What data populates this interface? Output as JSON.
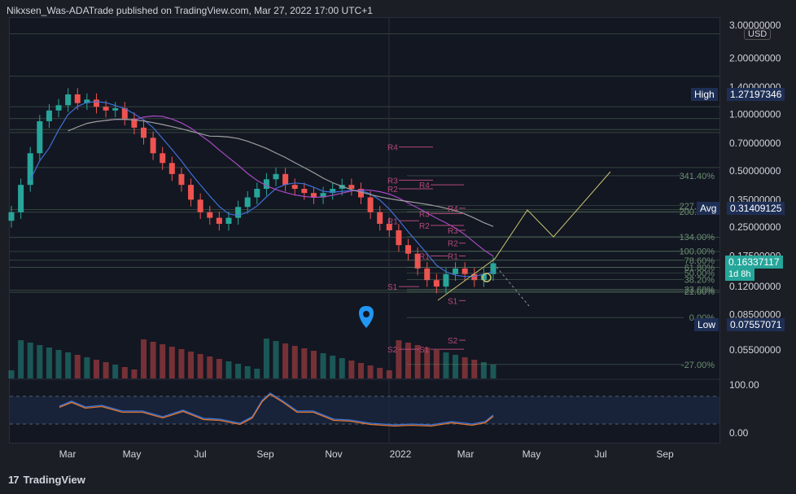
{
  "header": {
    "text": "Nikxsen_Was-ADATrade published on TradingView.com, Mar 27, 2022 17:00 UTC+1"
  },
  "footer": {
    "brand": "TradingView",
    "logo": "17"
  },
  "currency": "USD",
  "price_tags": {
    "high_label": "High",
    "high_value": "1.27197346",
    "avg_label": "Avg",
    "avg_value": "0.31409125",
    "low_label": "Low",
    "low_value": "0.07557071",
    "last_value": "0.16337117",
    "last_countdown": "1d 8h"
  },
  "colors": {
    "bull": "#26a69a",
    "bear": "#ef5350",
    "pivot": "#b4497a",
    "fib": "#6b8f71",
    "ma_blue": "#3f6fd6",
    "ma_purple": "#a54ac2",
    "ma_grey": "#9e9e9e",
    "projection": "#c9c473",
    "rsi_blue": "#3b73d8",
    "rsi_orange": "#e5772e",
    "marker": "#2196f3"
  },
  "chart_data": {
    "type": "candlestick",
    "symbol": "ADA/USD",
    "scale": "log",
    "ylim": [
      0.04,
      3.0
    ],
    "y_ticks": [
      "3.00000000",
      "2.00000000",
      "1.40000000",
      "1.00000000",
      "0.70000000",
      "0.50000000",
      "0.35000000",
      "0.25000000",
      "0.17500000",
      "0.12000000",
      "0.08500000",
      "0.05500000"
    ],
    "x_ticks": [
      "Mar",
      "May",
      "Jul",
      "Sep",
      "Nov",
      "2022",
      "Mar",
      "May",
      "Jul",
      "Sep"
    ],
    "fib_levels": [
      {
        "label": "341.40%",
        "value": 0.47
      },
      {
        "label": "227.20%",
        "value": 0.325
      },
      {
        "label": "200.00%",
        "value": 0.302
      },
      {
        "label": "134.00%",
        "value": 0.222
      },
      {
        "label": "100.00%",
        "value": 0.186
      },
      {
        "label": "78.60%",
        "value": 0.166
      },
      {
        "label": "61.80%",
        "value": 0.152
      },
      {
        "label": "50.00%",
        "value": 0.142
      },
      {
        "label": "38.20%",
        "value": 0.131
      },
      {
        "label": "23.60%",
        "value": 0.116
      },
      {
        "label": "21.00%",
        "value": 0.113
      },
      {
        "label": "0.00%",
        "value": 0.082
      },
      {
        "label": "-27.00%",
        "value": 0.046
      }
    ],
    "pivots": [
      {
        "label": "R4",
        "value": 0.67
      },
      {
        "label": "R3",
        "value": 0.445
      },
      {
        "label": "R2",
        "value": 0.4
      },
      {
        "label": "R4",
        "value": 0.42
      },
      {
        "label": "R3",
        "value": 0.295
      },
      {
        "label": "R2",
        "value": 0.255
      },
      {
        "label": "R1",
        "value": 0.27
      },
      {
        "label": "R1",
        "value": 0.175
      },
      {
        "label": "S1",
        "value": 0.12
      },
      {
        "label": "S2",
        "value": 0.0555
      },
      {
        "label": "R4",
        "value": 0.315
      },
      {
        "label": "R3",
        "value": 0.24
      },
      {
        "label": "R2",
        "value": 0.205
      },
      {
        "label": "R1",
        "value": 0.175
      },
      {
        "label": "S1",
        "value": 0.101
      },
      {
        "label": "S2",
        "value": 0.062
      },
      {
        "label": "S1",
        "value": 0.0555
      }
    ],
    "series": [
      {
        "name": "ADA",
        "close": [
          0.3,
          0.42,
          0.62,
          0.92,
          1.05,
          1.12,
          1.28,
          1.15,
          1.2,
          1.1,
          1.05,
          1.08,
          0.95,
          0.85,
          0.75,
          0.62,
          0.55,
          0.48,
          0.42,
          0.35,
          0.3,
          0.28,
          0.26,
          0.28,
          0.32,
          0.36,
          0.4,
          0.45,
          0.48,
          0.42,
          0.4,
          0.38,
          0.36,
          0.38,
          0.4,
          0.42,
          0.4,
          0.36,
          0.3,
          0.26,
          0.24,
          0.2,
          0.18,
          0.15,
          0.13,
          0.12,
          0.14,
          0.15,
          0.14,
          0.13,
          0.14,
          0.16
        ]
      }
    ]
  },
  "rsi": {
    "ticks": [
      "100.00",
      "0.00"
    ]
  }
}
